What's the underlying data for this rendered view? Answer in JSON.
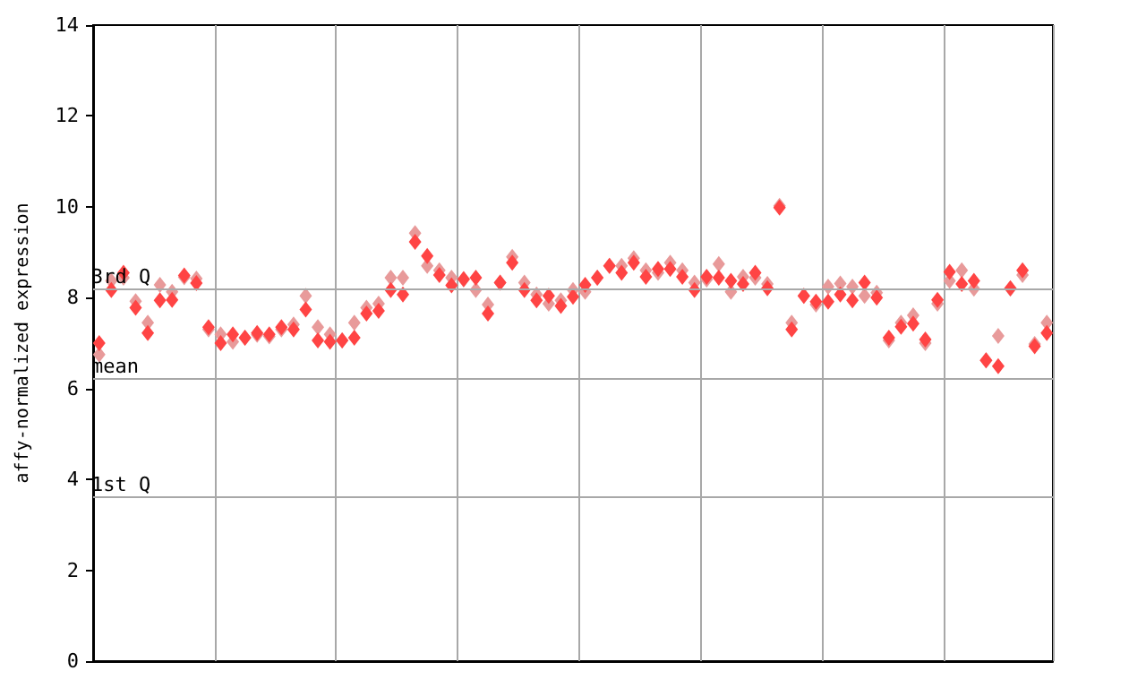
{
  "chart_data": {
    "type": "scatter",
    "ylabel": "affy-normalized expression",
    "categories": [
      null,
      null,
      null,
      null,
      null,
      null,
      null,
      null,
      null,
      null,
      null,
      null,
      null,
      null,
      null,
      null,
      null,
      null,
      null,
      null,
      null,
      null,
      null,
      null,
      null,
      null,
      null,
      null,
      null,
      null,
      null,
      null,
      null,
      null,
      null,
      null,
      null,
      null,
      null,
      null,
      null,
      null,
      null,
      null,
      null,
      null,
      null,
      null,
      null,
      null,
      null,
      null,
      null,
      null,
      null,
      null,
      null,
      null,
      null,
      null,
      null,
      null,
      null,
      null,
      null,
      null,
      null,
      null,
      null,
      null,
      null,
      null,
      null,
      null,
      null,
      null,
      null,
      null,
      null
    ],
    "series": [
      {
        "color": "#e89a9a",
        "values": [
          6.75,
          8.37,
          8.44,
          7.92,
          7.45,
          8.28,
          8.13,
          8.45,
          8.42,
          7.3,
          7.19,
          7.03,
          7.12,
          7.18,
          7.15,
          7.3,
          7.41,
          8.04,
          7.35,
          7.19,
          7.06,
          7.45,
          7.78,
          7.87,
          8.44,
          8.44,
          9.42,
          8.7,
          8.6,
          8.44,
          8.4,
          8.17,
          7.85,
          8.33,
          8.9,
          8.33,
          8.07,
          7.87,
          7.94,
          8.17,
          8.13,
          8.44,
          8.7,
          8.7,
          8.87,
          8.6,
          8.55,
          8.77,
          8.6,
          8.33,
          8.4,
          8.74,
          8.13,
          8.46,
          8.44,
          8.3,
          10.02,
          7.45,
          8.04,
          7.85,
          8.24,
          8.31,
          8.24,
          8.04,
          8.11,
          7.06,
          7.45,
          7.61,
          7.0,
          7.87,
          8.37,
          8.6,
          8.2,
          6.62,
          7.16,
          8.2,
          8.5,
          6.98,
          7.45
        ]
      },
      {
        "color": "#ff4444",
        "values": [
          7.0,
          8.17,
          8.55,
          7.78,
          7.22,
          7.94,
          7.95,
          8.49,
          8.32,
          7.35,
          7.0,
          7.19,
          7.12,
          7.22,
          7.19,
          7.35,
          7.3,
          7.74,
          7.06,
          7.03,
          7.06,
          7.12,
          7.65,
          7.71,
          8.17,
          8.07,
          9.23,
          8.92,
          8.5,
          8.27,
          8.41,
          8.44,
          7.65,
          8.33,
          8.77,
          8.17,
          7.94,
          8.04,
          7.82,
          8.02,
          8.28,
          8.44,
          8.7,
          8.55,
          8.77,
          8.46,
          8.63,
          8.63,
          8.46,
          8.17,
          8.46,
          8.44,
          8.37,
          8.3,
          8.55,
          8.21,
          9.98,
          7.3,
          8.04,
          7.91,
          7.91,
          8.07,
          7.94,
          8.33,
          8.0,
          7.12,
          7.36,
          7.43,
          7.08,
          7.95,
          8.57,
          8.3,
          8.37,
          6.62,
          6.49,
          8.21,
          8.6,
          6.93,
          7.22
        ]
      }
    ],
    "ylim": [
      0,
      14
    ],
    "yticks": [
      0,
      2,
      4,
      6,
      8,
      10,
      12,
      14
    ],
    "ref_lines": [
      {
        "axis": "y",
        "value": 8.2,
        "label": "3rd Q"
      },
      {
        "axis": "y",
        "value": 6.23,
        "label": "mean"
      },
      {
        "axis": "y",
        "value": 3.63,
        "label": "1st Q"
      }
    ],
    "grid": "x",
    "marker": "diamond"
  }
}
